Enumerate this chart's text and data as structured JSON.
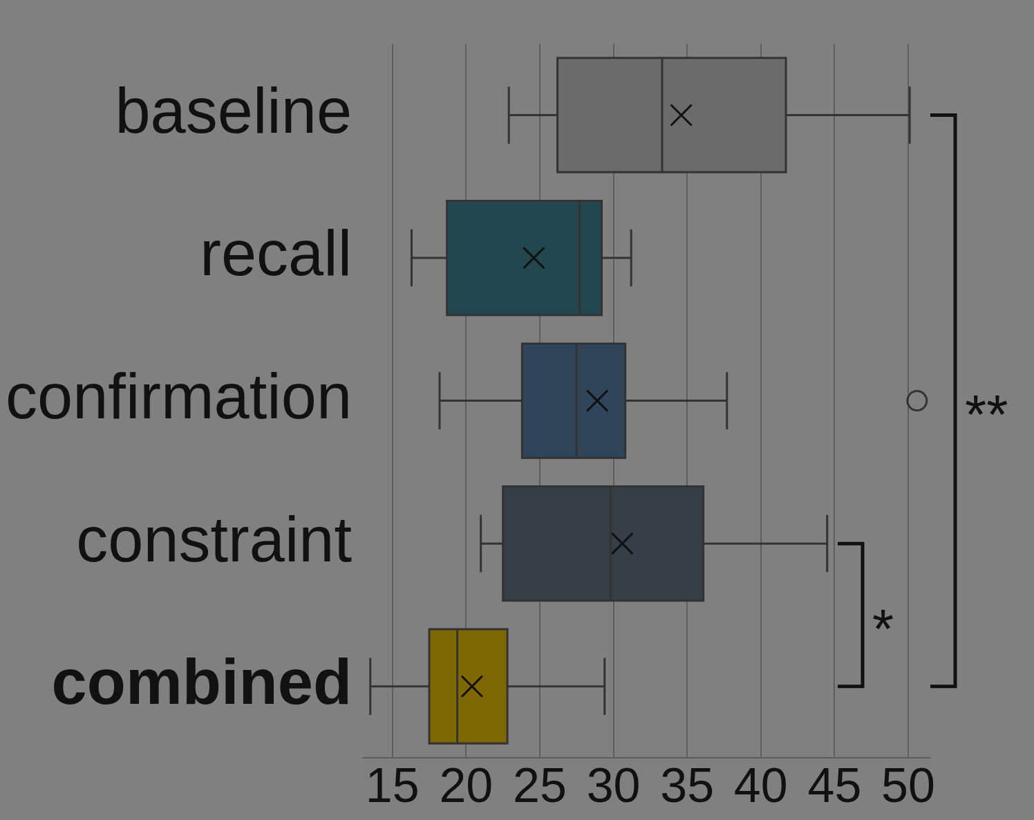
{
  "chart_data": {
    "type": "box",
    "orientation": "horizontal",
    "categories": [
      "baseline",
      "recall",
      "confirmation",
      "constraint",
      "combined"
    ],
    "colors": [
      "#6b6b6b",
      "#22474e",
      "#30445a",
      "#363e48",
      "#7e6700"
    ],
    "boxes": [
      {
        "low": 22.9,
        "q1": 26.2,
        "median": 33.3,
        "q3": 41.7,
        "high": 50.1,
        "mean": 34.6
      },
      {
        "low": 16.3,
        "q1": 18.7,
        "median": 27.7,
        "q3": 29.2,
        "high": 31.2,
        "mean": 24.6
      },
      {
        "low": 18.2,
        "q1": 23.8,
        "median": 27.5,
        "q3": 30.8,
        "high": 37.7,
        "mean": 28.9,
        "outliers": [
          50.6
        ]
      },
      {
        "low": 21.0,
        "q1": 22.5,
        "median": 29.8,
        "q3": 36.1,
        "high": 44.5,
        "mean": 30.6
      },
      {
        "low": 13.5,
        "q1": 17.5,
        "median": 19.4,
        "q3": 22.8,
        "high": 29.4,
        "mean": 20.4
      }
    ],
    "xlim": [
      13,
      51.5
    ],
    "xticks": [
      15,
      20,
      25,
      30,
      35,
      40,
      45,
      50
    ],
    "grid": "x",
    "annotations": [
      "*",
      "**"
    ]
  }
}
